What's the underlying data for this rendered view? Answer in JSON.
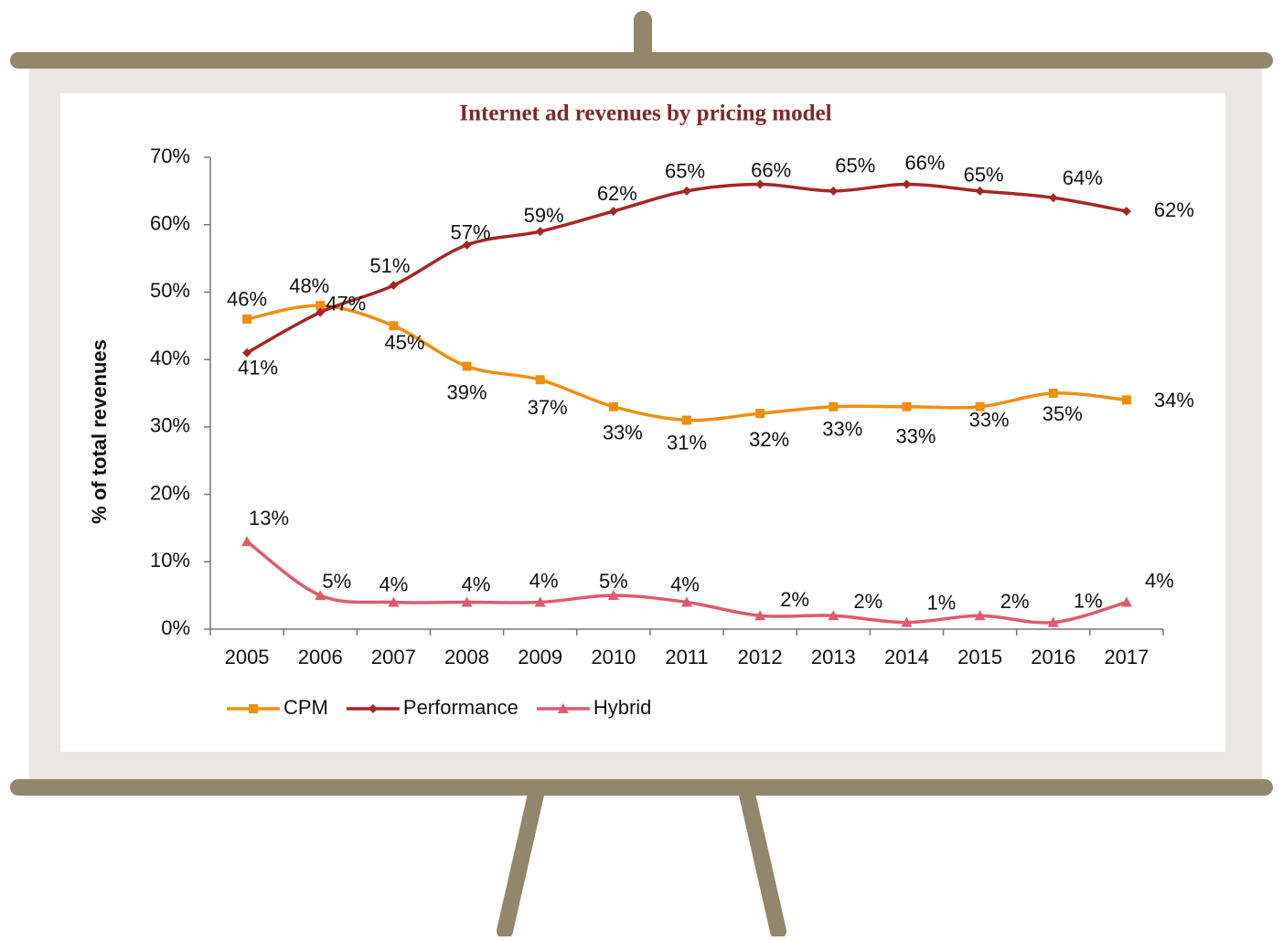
{
  "chart_data": {
    "type": "line",
    "title": "Internet ad revenues by pricing model",
    "y_label": "% of total revenues",
    "categories": [
      "2005",
      "2006",
      "2007",
      "2008",
      "2009",
      "2010",
      "2011",
      "2012",
      "2013",
      "2014",
      "2015",
      "2016",
      "2017"
    ],
    "series": [
      {
        "name": "CPM",
        "color": "#ef8f10",
        "marker": "square",
        "values": [
          46,
          48,
          45,
          39,
          37,
          33,
          31,
          32,
          33,
          33,
          33,
          35,
          34
        ],
        "value_labels": [
          "46%",
          "48%",
          "45%",
          "39%",
          "37%",
          "33%",
          "31%",
          "32%",
          "33%",
          "33%",
          "33%",
          "35%",
          "34%"
        ]
      },
      {
        "name": "Performance",
        "color": "#a52626",
        "marker": "diamond",
        "values": [
          41,
          47,
          51,
          57,
          59,
          62,
          65,
          66,
          65,
          66,
          65,
          64,
          62
        ],
        "value_labels": [
          "41%",
          "47%",
          "51%",
          "57%",
          "59%",
          "62%",
          "65%",
          "66%",
          "65%",
          "66%",
          "65%",
          "64%",
          "62%"
        ]
      },
      {
        "name": "Hybrid",
        "color": "#df5a6e",
        "marker": "triangle",
        "values": [
          13,
          5,
          4,
          4,
          4,
          5,
          4,
          2,
          2,
          1,
          2,
          1,
          4
        ],
        "value_labels": [
          "13%",
          "5%",
          "4%",
          "4%",
          "4%",
          "5%",
          "4%",
          "2%",
          "2%",
          "1%",
          "2%",
          "1%",
          "4%"
        ]
      }
    ],
    "ylim": [
      0,
      70
    ],
    "yticks": [
      {
        "value": 0,
        "label": "0%"
      },
      {
        "value": 10,
        "label": "10%"
      },
      {
        "value": 20,
        "label": "20%"
      },
      {
        "value": 30,
        "label": "30%"
      },
      {
        "value": 40,
        "label": "40%"
      },
      {
        "value": 50,
        "label": "50%"
      },
      {
        "value": 60,
        "label": "60%"
      },
      {
        "value": 70,
        "label": "70%"
      }
    ],
    "grid": false,
    "legend": "bottom"
  }
}
